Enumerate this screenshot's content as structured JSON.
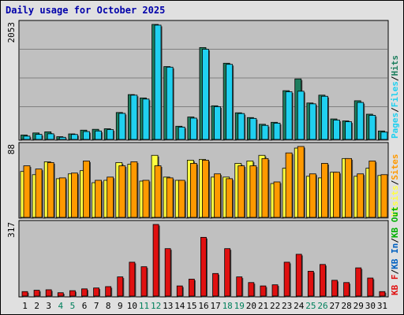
{
  "title": "Daily usage for October 2025",
  "colors": {
    "hits": "#1e7e5e",
    "files": "#20d0f0",
    "visits": "#ffff40",
    "sites": "#ff9900",
    "kbin": "#0060c0",
    "kbout": "#00b000",
    "kbf": "#e01010",
    "panel_bg": "#c0c0c0",
    "frame_bg": "#e0e0e0",
    "grid": "#808080",
    "weekend_label": "#00805c",
    "title": "#0000aa"
  },
  "chart_data": [
    {
      "type": "bar",
      "panel": "top",
      "ymax_label": "2053",
      "ylim": [
        0,
        2053
      ],
      "grid": true,
      "legend": [
        "Pages",
        "/",
        "Files",
        "/",
        "Hits"
      ],
      "categories": [
        "1",
        "2",
        "3",
        "4",
        "5",
        "6",
        "7",
        "8",
        "9",
        "10",
        "11",
        "12",
        "13",
        "14",
        "15",
        "16",
        "17",
        "18",
        "19",
        "20",
        "21",
        "22",
        "23",
        "24",
        "25",
        "26",
        "27",
        "28",
        "29",
        "30",
        "31"
      ],
      "weekend_days": [
        "4",
        "5",
        "11",
        "12",
        "18",
        "19",
        "25",
        "26"
      ],
      "series": [
        {
          "name": "Hits",
          "values": [
            78,
            115,
            135,
            48,
            98,
            165,
            180,
            190,
            480,
            800,
            740,
            2053,
            1300,
            235,
            400,
            1640,
            600,
            1360,
            475,
            390,
            270,
            305,
            870,
            1080,
            650,
            790,
            365,
            330,
            690,
            450,
            150
          ]
        },
        {
          "name": "Files",
          "values": [
            58,
            90,
            100,
            38,
            88,
            140,
            150,
            175,
            465,
            790,
            720,
            2040,
            1290,
            220,
            380,
            1610,
            585,
            1340,
            462,
            375,
            250,
            290,
            850,
            860,
            635,
            770,
            345,
            315,
            660,
            430,
            130
          ]
        }
      ]
    },
    {
      "type": "bar",
      "panel": "middle",
      "ymax_label": "88",
      "ylim": [
        0,
        88
      ],
      "legend": [
        "Visits",
        "/",
        "Sites"
      ],
      "series": [
        {
          "name": "Visits",
          "values": [
            57,
            53,
            69,
            48,
            54,
            58,
            43,
            46,
            68,
            66,
            45,
            77,
            50,
            46,
            71,
            72,
            50,
            50,
            67,
            70,
            77,
            42,
            61,
            86,
            51,
            49,
            56,
            73,
            51,
            61,
            52
          ]
        },
        {
          "name": "Sites",
          "values": [
            64,
            60,
            68,
            49,
            55,
            70,
            46,
            50,
            64,
            69,
            46,
            64,
            49,
            46,
            67,
            71,
            54,
            48,
            64,
            64,
            73,
            44,
            80,
            88,
            54,
            67,
            56,
            73,
            54,
            70,
            53
          ]
        }
      ]
    },
    {
      "type": "bar",
      "panel": "bottom",
      "ymax_label": "317",
      "ylim": [
        0,
        317
      ],
      "legend": [
        "KB F",
        "/",
        "KB In",
        "/",
        "KB Out"
      ],
      "series": [
        {
          "name": "KB F",
          "values": [
            20,
            26,
            28,
            15,
            24,
            32,
            36,
            42,
            85,
            150,
            130,
            317,
            210,
            45,
            75,
            260,
            100,
            210,
            85,
            60,
            45,
            50,
            150,
            185,
            110,
            140,
            70,
            60,
            125,
            80,
            20
          ]
        }
      ]
    }
  ]
}
